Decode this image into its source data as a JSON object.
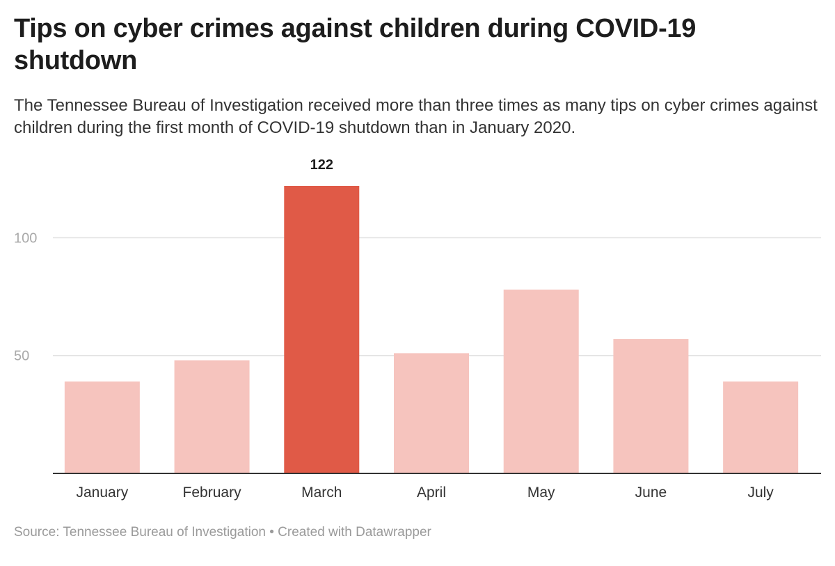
{
  "header": {
    "title": "Tips on cyber crimes against children during COVID-19 shutdown",
    "subtitle": "The Tennessee Bureau of Investigation received more than three times as many tips on cyber crimes against children during the first month of COVID-19 shutdown than in January 2020."
  },
  "footer": {
    "source": "Source: Tennessee Bureau of Investigation",
    "separator": "•",
    "credit": "Created with Datawrapper"
  },
  "colors": {
    "highlight": "#e05a47",
    "muted": "#f6c4be",
    "gridline": "#e2e2e2",
    "baseline": "#333333"
  },
  "chart_data": {
    "type": "bar",
    "title": "Tips on cyber crimes against children during COVID-19 shutdown",
    "xlabel": "",
    "ylabel": "",
    "categories": [
      "January",
      "February",
      "March",
      "April",
      "May",
      "June",
      "July"
    ],
    "values": [
      39,
      48,
      122,
      51,
      78,
      57,
      39
    ],
    "highlight_index": 2,
    "value_labels": [
      {
        "category": "March",
        "text": "122"
      }
    ],
    "yticks": [
      50,
      100
    ],
    "ylim": [
      0,
      122
    ],
    "grid": true,
    "legend": "none"
  }
}
